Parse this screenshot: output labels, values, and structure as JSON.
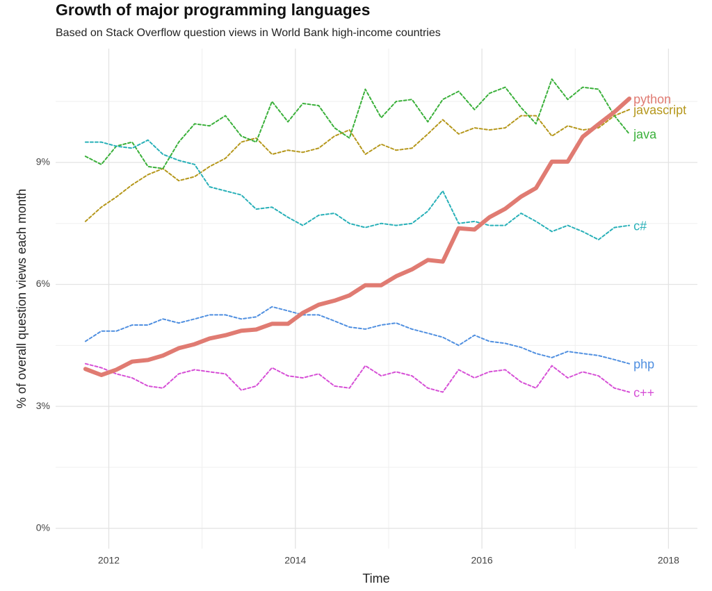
{
  "chart_data": {
    "type": "line",
    "title": "Growth of major programming languages",
    "subtitle": "Based on Stack Overflow question views in World Bank high-income countries",
    "x_label": "Time",
    "y_label": "% of overall question views each month",
    "xlim": [
      2011.43,
      2018.31
    ],
    "ylim": [
      -0.5,
      11.8
    ],
    "xticks": [
      2012,
      2014,
      2016,
      2018
    ],
    "yticks": [
      {
        "value": 0,
        "label": "0%"
      },
      {
        "value": 3,
        "label": "3%"
      },
      {
        "value": 6,
        "label": "6%"
      },
      {
        "value": 9,
        "label": "9%"
      }
    ],
    "xminor": [
      2013,
      2015,
      2017
    ],
    "yminor": [
      1.5,
      4.5,
      7.5,
      10.5
    ],
    "grid": true,
    "x": [
      2011.75,
      2011.92,
      2012.08,
      2012.25,
      2012.42,
      2012.58,
      2012.75,
      2012.92,
      2013.08,
      2013.25,
      2013.42,
      2013.58,
      2013.75,
      2013.92,
      2014.08,
      2014.25,
      2014.42,
      2014.58,
      2014.75,
      2014.92,
      2015.08,
      2015.25,
      2015.42,
      2015.58,
      2015.75,
      2015.92,
      2016.08,
      2016.25,
      2016.42,
      2016.58,
      2016.75,
      2016.92,
      2017.08,
      2017.25,
      2017.42,
      2017.58
    ],
    "series": [
      {
        "name": "javascript",
        "color": "#b5971b",
        "dashed": true,
        "values": [
          7.55,
          7.9,
          8.15,
          8.45,
          8.7,
          8.85,
          8.55,
          8.65,
          8.9,
          9.1,
          9.5,
          9.6,
          9.2,
          9.3,
          9.25,
          9.35,
          9.65,
          9.8,
          9.2,
          9.45,
          9.3,
          9.35,
          9.7,
          10.05,
          9.7,
          9.85,
          9.8,
          9.85,
          10.15,
          10.15,
          9.65,
          9.9,
          9.8,
          9.85,
          10.15,
          10.3
        ]
      },
      {
        "name": "java",
        "color": "#3ab03a",
        "dashed": true,
        "values": [
          9.15,
          8.95,
          9.4,
          9.5,
          8.9,
          8.85,
          9.5,
          9.95,
          9.9,
          10.15,
          9.65,
          9.5,
          10.5,
          10.0,
          10.45,
          10.4,
          9.85,
          9.6,
          10.8,
          10.1,
          10.5,
          10.55,
          10.0,
          10.55,
          10.75,
          10.3,
          10.7,
          10.85,
          10.35,
          9.95,
          11.05,
          10.55,
          10.85,
          10.8,
          10.15,
          9.7
        ]
      },
      {
        "name": "c#",
        "color": "#28b0b8",
        "dashed": true,
        "values": [
          9.5,
          9.5,
          9.4,
          9.35,
          9.55,
          9.2,
          9.05,
          8.95,
          8.4,
          8.3,
          8.2,
          7.85,
          7.9,
          7.65,
          7.45,
          7.7,
          7.75,
          7.5,
          7.4,
          7.5,
          7.45,
          7.5,
          7.8,
          8.3,
          7.5,
          7.55,
          7.45,
          7.45,
          7.75,
          7.55,
          7.3,
          7.45,
          7.3,
          7.1,
          7.4,
          7.45
        ]
      },
      {
        "name": "php",
        "color": "#4f8fe0",
        "dashed": true,
        "values": [
          4.6,
          4.85,
          4.85,
          5.0,
          5.0,
          5.15,
          5.05,
          5.15,
          5.25,
          5.25,
          5.15,
          5.2,
          5.45,
          5.35,
          5.25,
          5.25,
          5.1,
          4.95,
          4.9,
          5.0,
          5.05,
          4.9,
          4.8,
          4.7,
          4.5,
          4.75,
          4.6,
          4.55,
          4.45,
          4.3,
          4.2,
          4.35,
          4.3,
          4.25,
          4.15,
          4.05
        ]
      },
      {
        "name": "c++",
        "color": "#d64fd6",
        "dashed": true,
        "values": [
          4.05,
          3.95,
          3.8,
          3.7,
          3.5,
          3.45,
          3.8,
          3.9,
          3.85,
          3.8,
          3.4,
          3.5,
          3.95,
          3.75,
          3.7,
          3.8,
          3.5,
          3.45,
          4.0,
          3.75,
          3.85,
          3.75,
          3.45,
          3.35,
          3.9,
          3.7,
          3.85,
          3.9,
          3.6,
          3.45,
          4.0,
          3.7,
          3.85,
          3.75,
          3.45,
          3.35
        ]
      },
      {
        "name": "python",
        "color": "#e07b72",
        "dashed": false,
        "values": [
          3.92,
          3.77,
          3.9,
          4.1,
          4.14,
          4.25,
          4.43,
          4.53,
          4.67,
          4.75,
          4.86,
          4.89,
          5.03,
          5.03,
          5.3,
          5.5,
          5.6,
          5.73,
          5.98,
          5.98,
          6.2,
          6.37,
          6.6,
          6.56,
          7.38,
          7.35,
          7.65,
          7.86,
          8.16,
          8.37,
          9.02,
          9.02,
          9.63,
          9.94,
          10.24,
          10.57
        ]
      }
    ]
  }
}
